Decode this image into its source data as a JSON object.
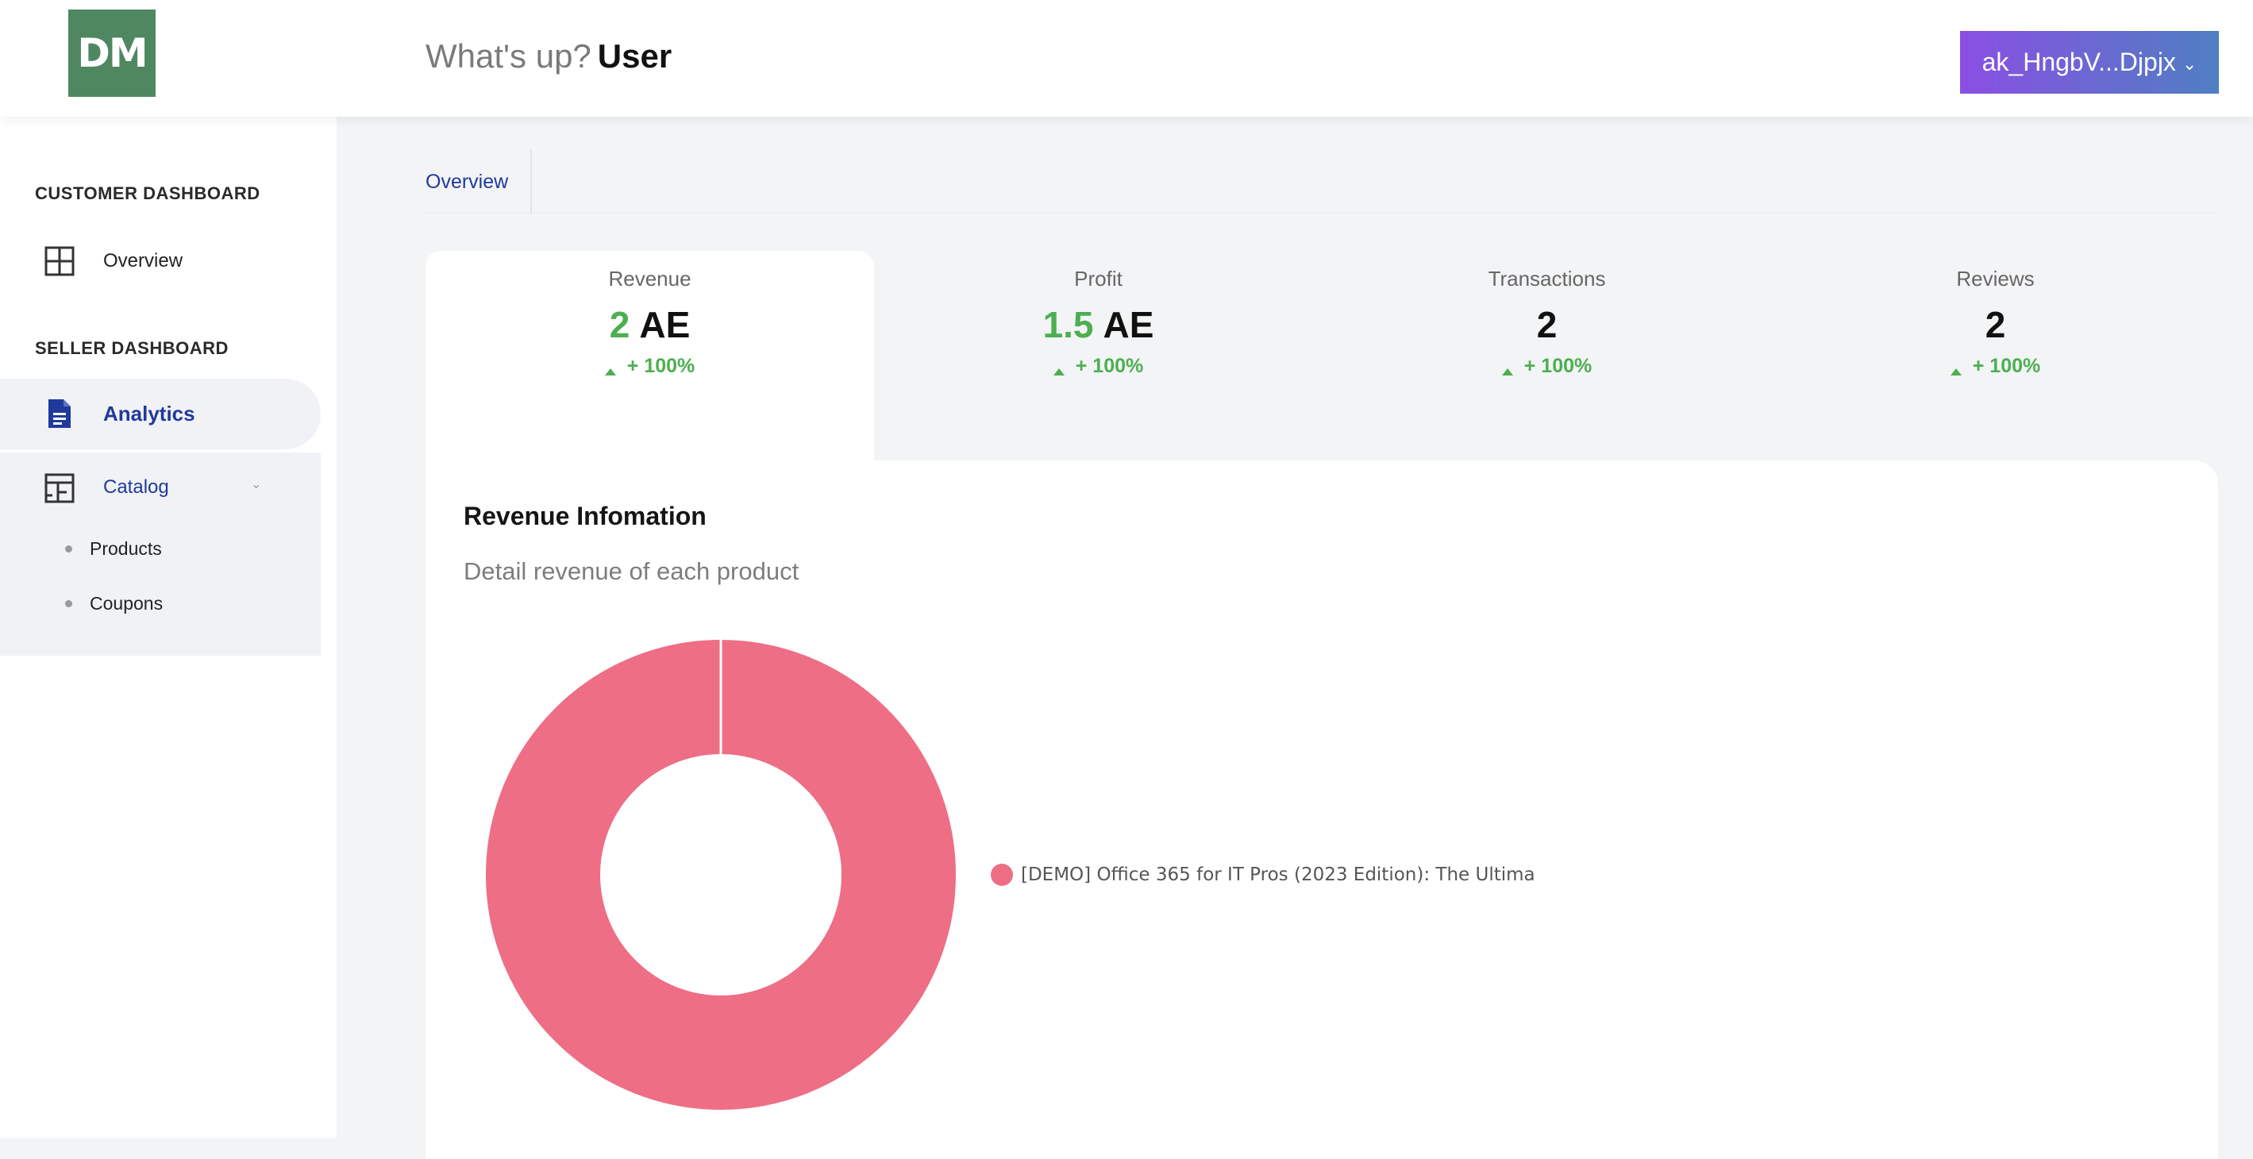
{
  "header": {
    "logo_text": "DM",
    "greeting_prefix": "What's up?",
    "greeting_name": "User",
    "account_label": "ak_HngbV...Djpjx",
    "accent_colors": [
      "#8a4fe3",
      "#4f7fc2"
    ]
  },
  "sidebar": {
    "customer_section": "CUSTOMER DASHBOARD",
    "overview_label": "Overview",
    "seller_section": "SELLER DASHBOARD",
    "analytics_label": "Analytics",
    "catalog_label": "Catalog",
    "catalog_children": [
      "Products",
      "Coupons"
    ],
    "icons": [
      "grid-icon",
      "document-icon",
      "layout-icon",
      "chevron-down-icon"
    ]
  },
  "main": {
    "tabs": [
      {
        "label": "Overview"
      }
    ],
    "stats": [
      {
        "label": "Revenue",
        "value_number": "2",
        "value_unit": "AE",
        "change": "+ 100%"
      },
      {
        "label": "Profit",
        "value_number": "1.5",
        "value_unit": "AE",
        "change": "+ 100%"
      },
      {
        "label": "Transactions",
        "value": "2",
        "change": "+ 100%"
      },
      {
        "label": "Reviews",
        "value": "2",
        "change": "+ 100%"
      }
    ],
    "card": {
      "title": "Revenue Infomation",
      "subtitle": "Detail revenue of each product"
    }
  },
  "chart_data": {
    "type": "pie",
    "labels": [
      "[DEMO] Office 365 for IT Pros (2023 Edition): The Ultima"
    ],
    "values": [
      2
    ],
    "colors": [
      "#ee6e85"
    ],
    "legend_position": "right"
  }
}
